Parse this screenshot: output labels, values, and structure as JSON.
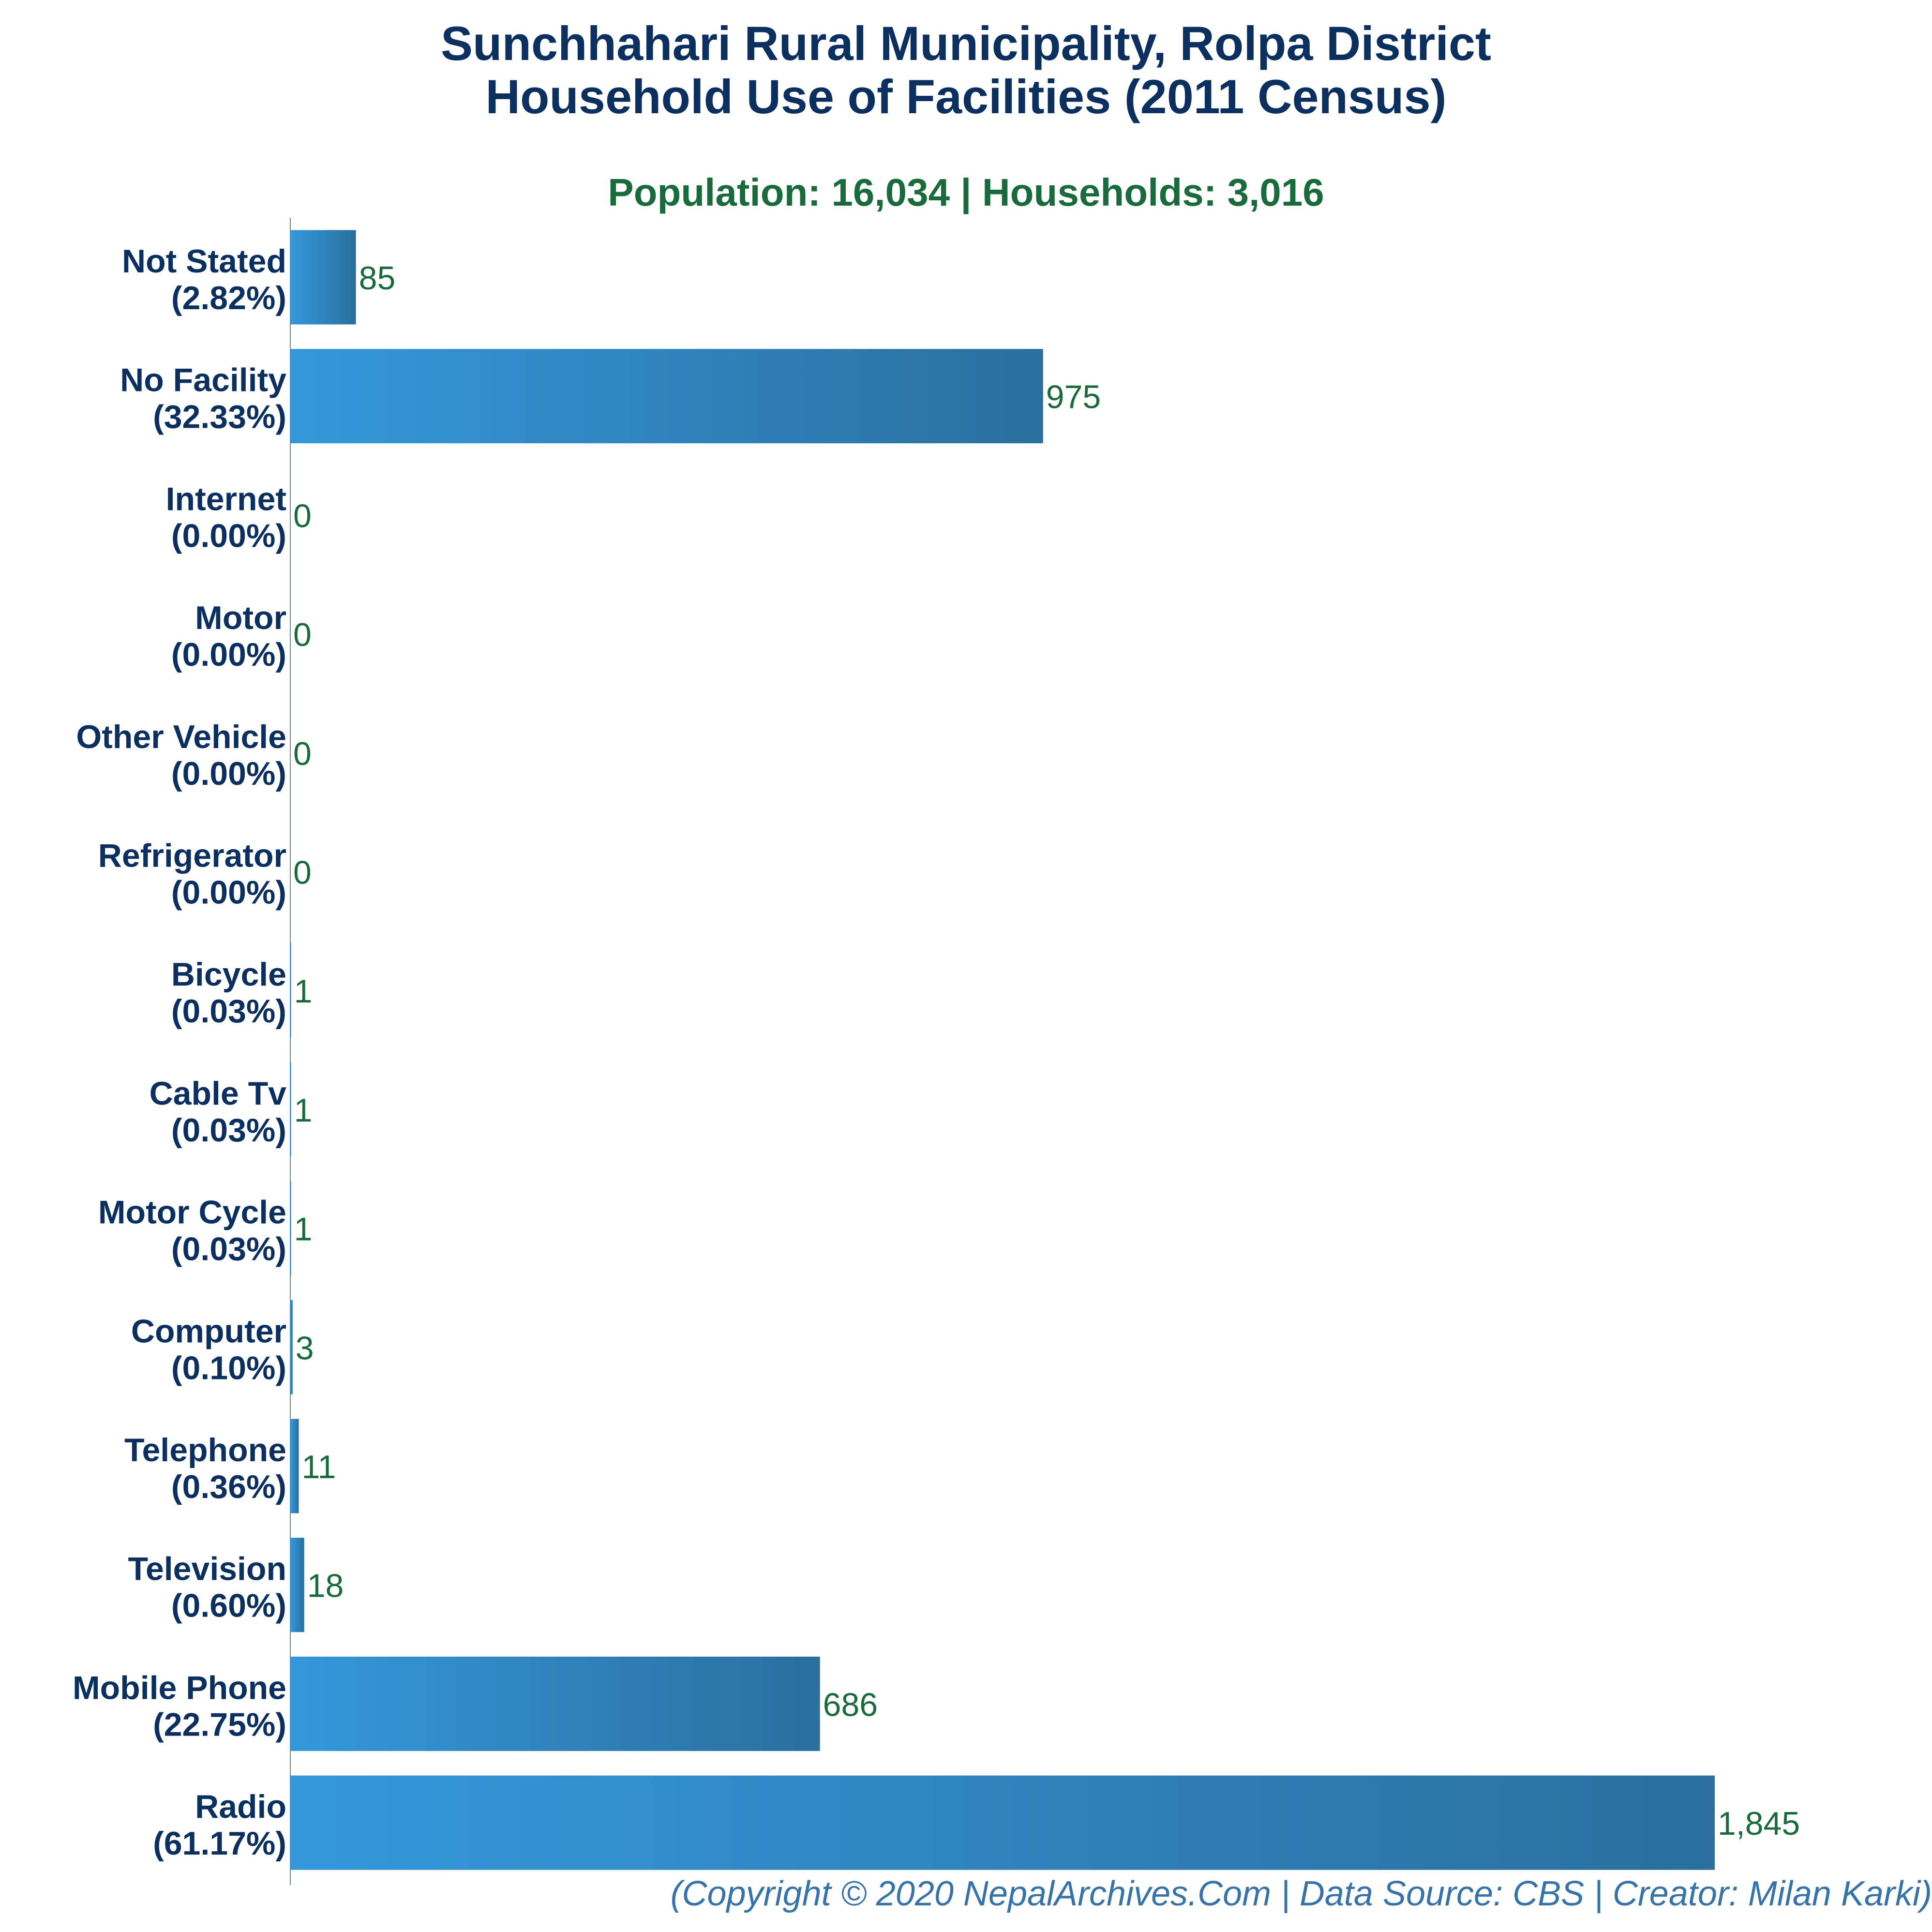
{
  "title_line1": "Sunchhahari Rural Municipality, Rolpa District",
  "title_line2": "Household Use of Facilities (2011 Census)",
  "subtitle": "Population: 16,034 | Households: 3,016",
  "footer": "(Copyright © 2020 NepalArchives.Com | Data Source: CBS | Creator: Milan Karki)",
  "colors": {
    "title": "#0b3060",
    "subtitle": "#1a6b3c",
    "bar_start": "#3498db",
    "bar_end": "#2a6f9e",
    "value_label": "#1a6b3c",
    "footer": "#3573a9",
    "axis": "#7f8c8d"
  },
  "chart_data": {
    "type": "bar",
    "orientation": "horizontal",
    "categories": [
      "Not Stated",
      "No Facility",
      "Internet",
      "Motor",
      "Other Vehicle",
      "Refrigerator",
      "Bicycle",
      "Cable Tv",
      "Motor Cycle",
      "Computer",
      "Telephone",
      "Television",
      "Mobile Phone",
      "Radio"
    ],
    "percent_labels": [
      "(2.82%)",
      "(32.33%)",
      "(0.00%)",
      "(0.00%)",
      "(0.00%)",
      "(0.00%)",
      "(0.03%)",
      "(0.03%)",
      "(0.03%)",
      "(0.10%)",
      "(0.36%)",
      "(0.60%)",
      "(22.75%)",
      "(61.17%)"
    ],
    "values": [
      85,
      975,
      0,
      0,
      0,
      0,
      1,
      1,
      1,
      3,
      11,
      18,
      686,
      1845
    ],
    "value_labels": [
      "85",
      "975",
      "0",
      "0",
      "0",
      "0",
      "1",
      "1",
      "1",
      "3",
      "11",
      "18",
      "686",
      "1,845"
    ],
    "xlim": [
      0,
      1845
    ],
    "grid": false,
    "legend": false
  }
}
